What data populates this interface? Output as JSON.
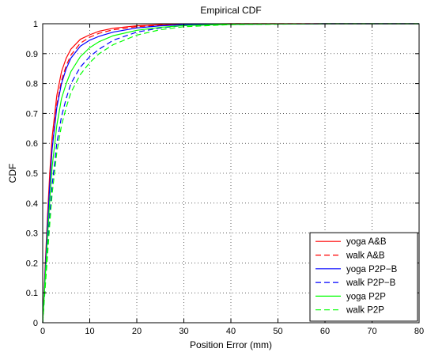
{
  "chart_data": {
    "type": "line",
    "title": "Empirical CDF",
    "xlabel": "Position Error (mm)",
    "ylabel": "CDF",
    "xlim": [
      0,
      80
    ],
    "ylim": [
      0,
      1
    ],
    "xticks": [
      0,
      10,
      20,
      30,
      40,
      50,
      60,
      70,
      80
    ],
    "yticks": [
      0,
      0.1,
      0.2,
      0.3,
      0.4,
      0.5,
      0.6,
      0.7,
      0.8,
      0.9,
      1
    ],
    "grid": true,
    "legend_position": "bottom-right",
    "series": [
      {
        "name": "yoga A&B",
        "color": "#ff0000",
        "dash": "solid",
        "x": [
          0,
          0.5,
          1,
          1.5,
          2,
          3,
          4,
          5,
          6,
          8,
          10,
          12,
          15,
          20,
          25,
          30,
          40,
          60,
          80
        ],
        "y": [
          0,
          0.18,
          0.35,
          0.5,
          0.62,
          0.76,
          0.84,
          0.885,
          0.915,
          0.948,
          0.963,
          0.975,
          0.985,
          0.993,
          0.997,
          0.999,
          1.0,
          1.0,
          1.0
        ]
      },
      {
        "name": "walk A&B",
        "color": "#ff0000",
        "dash": "dashed",
        "x": [
          0,
          0.5,
          1,
          1.5,
          2,
          3,
          4,
          5,
          6,
          8,
          10,
          12,
          15,
          20,
          25,
          30,
          40,
          60,
          80
        ],
        "y": [
          0,
          0.17,
          0.33,
          0.47,
          0.59,
          0.73,
          0.81,
          0.86,
          0.895,
          0.935,
          0.955,
          0.968,
          0.98,
          0.99,
          0.995,
          0.998,
          1.0,
          1.0,
          1.0
        ]
      },
      {
        "name": "yoga P2P−B",
        "color": "#0000ff",
        "dash": "solid",
        "x": [
          0,
          0.5,
          1,
          1.5,
          2,
          3,
          4,
          5,
          6,
          8,
          10,
          12,
          15,
          20,
          25,
          30,
          40,
          60,
          80
        ],
        "y": [
          0,
          0.16,
          0.32,
          0.46,
          0.58,
          0.72,
          0.8,
          0.85,
          0.885,
          0.925,
          0.945,
          0.958,
          0.972,
          0.986,
          0.993,
          0.997,
          0.999,
          1.0,
          1.0
        ]
      },
      {
        "name": "walk P2P−B",
        "color": "#0000ff",
        "dash": "dashed",
        "x": [
          0,
          0.5,
          1,
          1.5,
          2,
          3,
          4,
          5,
          6,
          8,
          10,
          12,
          15,
          20,
          25,
          30,
          40,
          60,
          80
        ],
        "y": [
          0,
          0.12,
          0.24,
          0.36,
          0.46,
          0.6,
          0.69,
          0.75,
          0.8,
          0.855,
          0.89,
          0.915,
          0.945,
          0.972,
          0.986,
          0.994,
          0.998,
          1.0,
          1.0
        ]
      },
      {
        "name": "yoga P2P",
        "color": "#00ff00",
        "dash": "solid",
        "x": [
          0,
          0.5,
          1,
          1.5,
          2,
          3,
          4,
          5,
          6,
          8,
          10,
          12,
          15,
          20,
          25,
          30,
          40,
          60,
          80
        ],
        "y": [
          0,
          0.14,
          0.28,
          0.41,
          0.52,
          0.66,
          0.75,
          0.8,
          0.84,
          0.89,
          0.92,
          0.94,
          0.96,
          0.978,
          0.988,
          0.994,
          0.998,
          1.0,
          1.0
        ]
      },
      {
        "name": "walk P2P",
        "color": "#00ff00",
        "dash": "dashed",
        "x": [
          0,
          0.5,
          1,
          1.5,
          2,
          3,
          4,
          5,
          6,
          8,
          10,
          12,
          15,
          20,
          25,
          30,
          40,
          60,
          80
        ],
        "y": [
          0,
          0.11,
          0.22,
          0.33,
          0.43,
          0.57,
          0.66,
          0.72,
          0.77,
          0.83,
          0.87,
          0.9,
          0.93,
          0.962,
          0.98,
          0.99,
          0.997,
          1.0,
          1.0
        ]
      }
    ]
  }
}
